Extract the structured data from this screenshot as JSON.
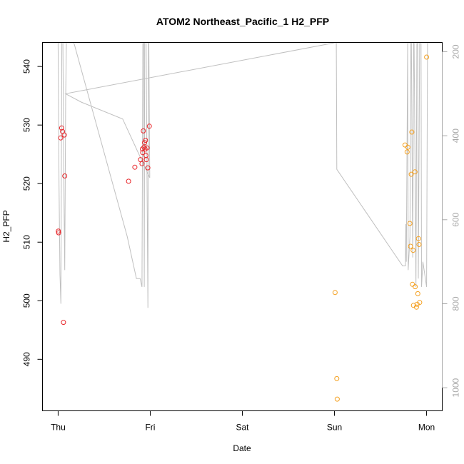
{
  "chart_data": {
    "type": "scatter",
    "title": "ATOM2 Northeast_Pacific_1 H2_PFP",
    "xlabel": "Date",
    "ylabel": "H2_PFP",
    "x_ticks": [
      "Thu",
      "Fri",
      "Sat",
      "Sun",
      "Mon"
    ],
    "x_range_days": [
      -0.17,
      4.17
    ],
    "ylim": [
      481.2,
      544.1
    ],
    "y_ticks": [
      490,
      500,
      510,
      520,
      530,
      540
    ],
    "y2_range": [
      1055,
      178
    ],
    "y2_ticks": [
      200,
      400,
      600,
      800,
      1000
    ],
    "y2_color": "#a8a8a8",
    "legend": "none",
    "grid": false,
    "series": [
      {
        "color": "#e8262a",
        "points": [
          [
            0.003,
            511.9
          ],
          [
            0.005,
            511.6
          ],
          [
            0.028,
            527.8
          ],
          [
            0.038,
            529.5
          ],
          [
            0.048,
            528.9
          ],
          [
            0.058,
            496.3
          ],
          [
            0.067,
            528.3
          ],
          [
            0.072,
            521.3
          ],
          [
            0.765,
            520.4
          ],
          [
            0.833,
            522.8
          ],
          [
            0.894,
            524.1
          ],
          [
            0.91,
            523.4
          ],
          [
            0.914,
            525.9
          ],
          [
            0.918,
            525.3
          ],
          [
            0.925,
            529.0
          ],
          [
            0.932,
            526.2
          ],
          [
            0.938,
            527.0
          ],
          [
            0.944,
            525.9
          ],
          [
            0.948,
            527.4
          ],
          [
            0.953,
            524.8
          ],
          [
            0.958,
            524.1
          ],
          [
            0.966,
            526.1
          ],
          [
            0.974,
            522.7
          ],
          [
            0.99,
            529.8
          ]
        ]
      },
      {
        "color": "#f4a020",
        "points": [
          [
            3.007,
            501.4
          ],
          [
            3.025,
            486.7
          ],
          [
            3.03,
            483.2
          ],
          [
            3.766,
            526.6
          ],
          [
            3.789,
            525.4
          ],
          [
            3.797,
            526.2
          ],
          [
            3.819,
            513.2
          ],
          [
            3.826,
            509.3
          ],
          [
            3.834,
            521.6
          ],
          [
            3.84,
            528.8
          ],
          [
            3.847,
            502.8
          ],
          [
            3.854,
            508.6
          ],
          [
            3.858,
            499.2
          ],
          [
            3.874,
            522.0
          ],
          [
            3.876,
            502.4
          ],
          [
            3.89,
            498.9
          ],
          [
            3.897,
            499.4
          ],
          [
            3.905,
            501.2
          ],
          [
            3.912,
            510.6
          ],
          [
            3.918,
            509.6
          ],
          [
            3.925,
            499.7
          ],
          [
            4.0,
            541.6
          ]
        ]
      }
    ],
    "altitude_profile": {
      "color": "#c0c0c0",
      "points": [
        [
          0.0,
          178
        ],
        [
          0.01,
          520
        ],
        [
          0.02,
          730
        ],
        [
          0.03,
          800
        ],
        [
          0.04,
          178
        ],
        [
          0.052,
          178
        ],
        [
          0.064,
          560
        ],
        [
          0.072,
          720
        ],
        [
          0.082,
          310
        ],
        [
          0.09,
          178
        ],
        [
          0.17,
          178
        ],
        [
          0.75,
          640
        ],
        [
          0.85,
          740
        ],
        [
          0.89,
          740
        ],
        [
          0.91,
          760
        ],
        [
          0.92,
          178
        ],
        [
          0.93,
          178
        ],
        [
          0.935,
          760
        ],
        [
          0.94,
          178
        ],
        [
          0.955,
          178
        ],
        [
          0.975,
          810
        ],
        [
          0.98,
          178
        ],
        [
          0.985,
          178
        ],
        [
          0.995,
          500
        ],
        [
          0.7,
          360
        ],
        [
          0.25,
          320
        ],
        [
          0.08,
          300
        ],
        [
          3.02,
          178
        ],
        [
          3.025,
          480
        ],
        [
          3.74,
          710
        ],
        [
          3.77,
          710
        ],
        [
          3.775,
          610
        ],
        [
          3.78,
          700
        ],
        [
          3.795,
          178
        ],
        [
          3.8,
          720
        ],
        [
          3.82,
          640
        ],
        [
          3.83,
          178
        ],
        [
          3.835,
          178
        ],
        [
          3.85,
          690
        ],
        [
          3.86,
          178
        ],
        [
          3.865,
          178
        ],
        [
          3.885,
          760
        ],
        [
          3.895,
          178
        ],
        [
          3.905,
          178
        ],
        [
          3.91,
          740
        ],
        [
          3.925,
          178
        ],
        [
          3.94,
          178
        ],
        [
          3.945,
          760
        ],
        [
          3.96,
          700
        ],
        [
          4.0,
          760
        ],
        [
          4.01,
          178
        ]
      ]
    }
  }
}
